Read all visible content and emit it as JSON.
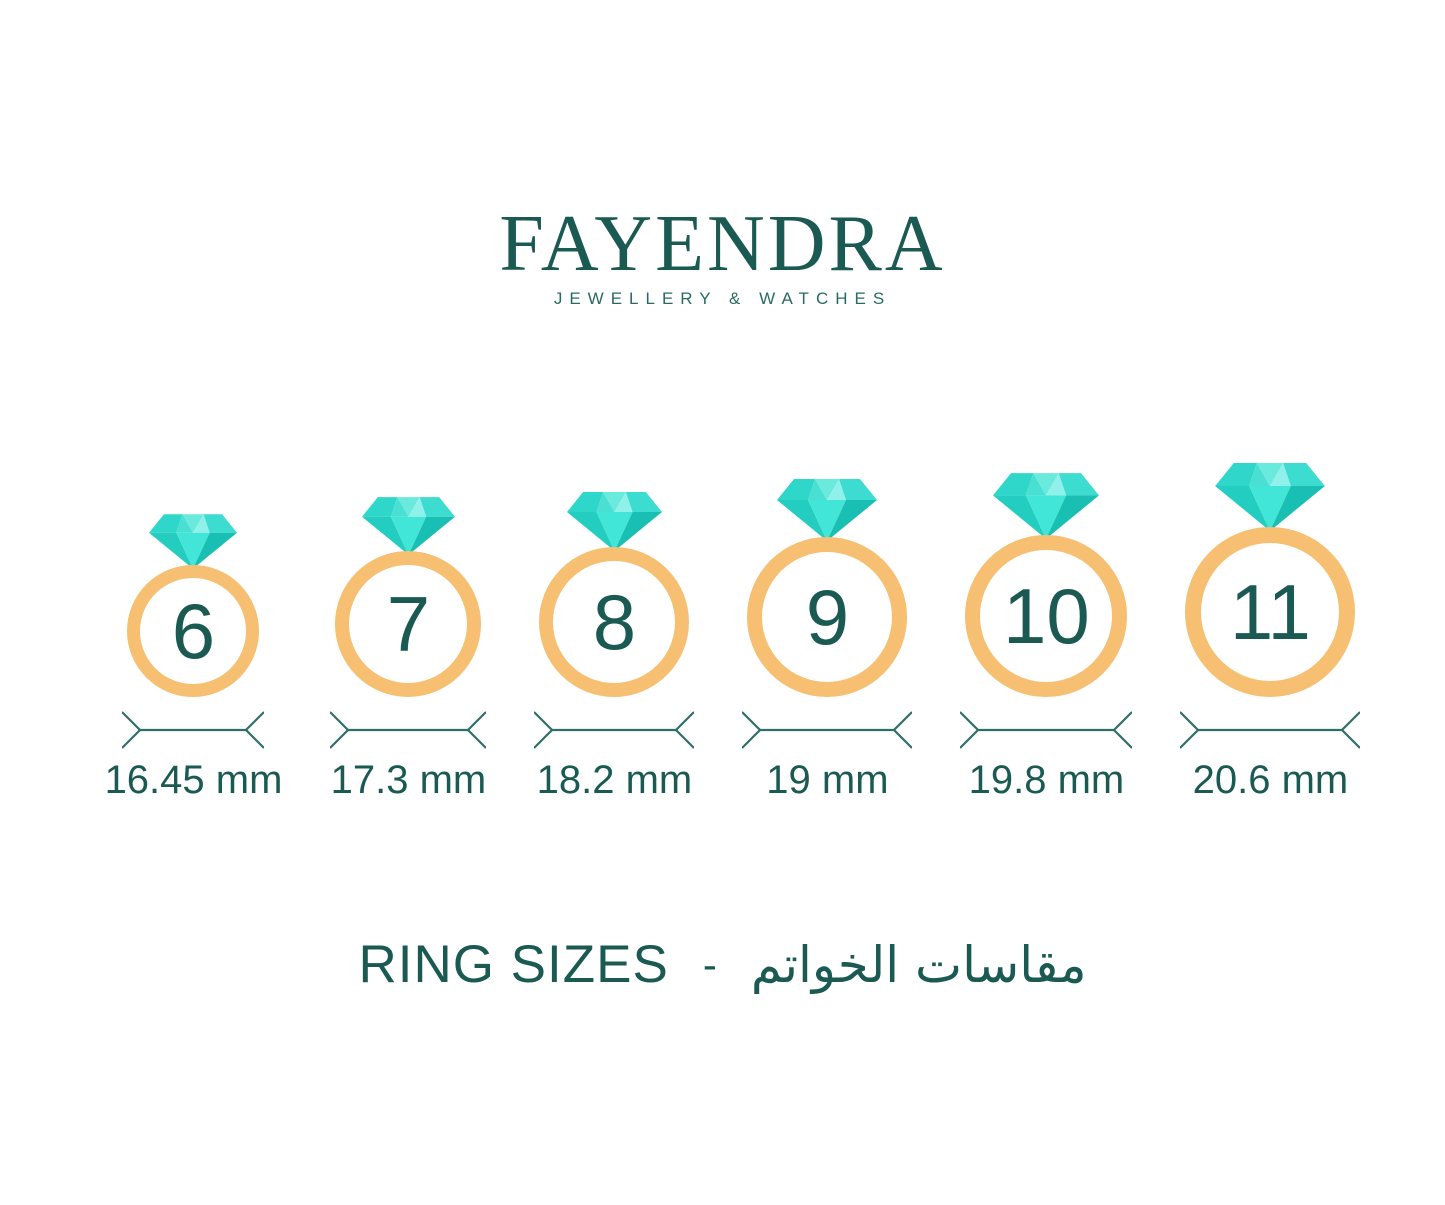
{
  "logo": {
    "brand": "FAYENDRA",
    "tagline": "JEWELLERY & WATCHES"
  },
  "rings": [
    {
      "size": "6",
      "diameter_label": "16.45 mm"
    },
    {
      "size": "7",
      "diameter_label": "17.3 mm"
    },
    {
      "size": "8",
      "diameter_label": "18.2 mm"
    },
    {
      "size": "9",
      "diameter_label": "19 mm"
    },
    {
      "size": "10",
      "diameter_label": "19.8 mm"
    },
    {
      "size": "11",
      "diameter_label": "20.6 mm"
    }
  ],
  "footer": {
    "title_en": "RING SIZES",
    "separator": "-",
    "title_ar": "مقاسات الخواتم"
  },
  "colors": {
    "teal_dark": "#1a5a52",
    "teal_mid": "#2a6a62",
    "arrow": "#2f6f67",
    "band_orange": "#f6bf72",
    "diamond_facets": [
      "#2ed7ca",
      "#49e0d3",
      "#69eadd",
      "#8ff1e9",
      "#3cdcd0",
      "#23cec1",
      "#41e6d8",
      "#1abfb3"
    ],
    "background": "#ffffff"
  }
}
